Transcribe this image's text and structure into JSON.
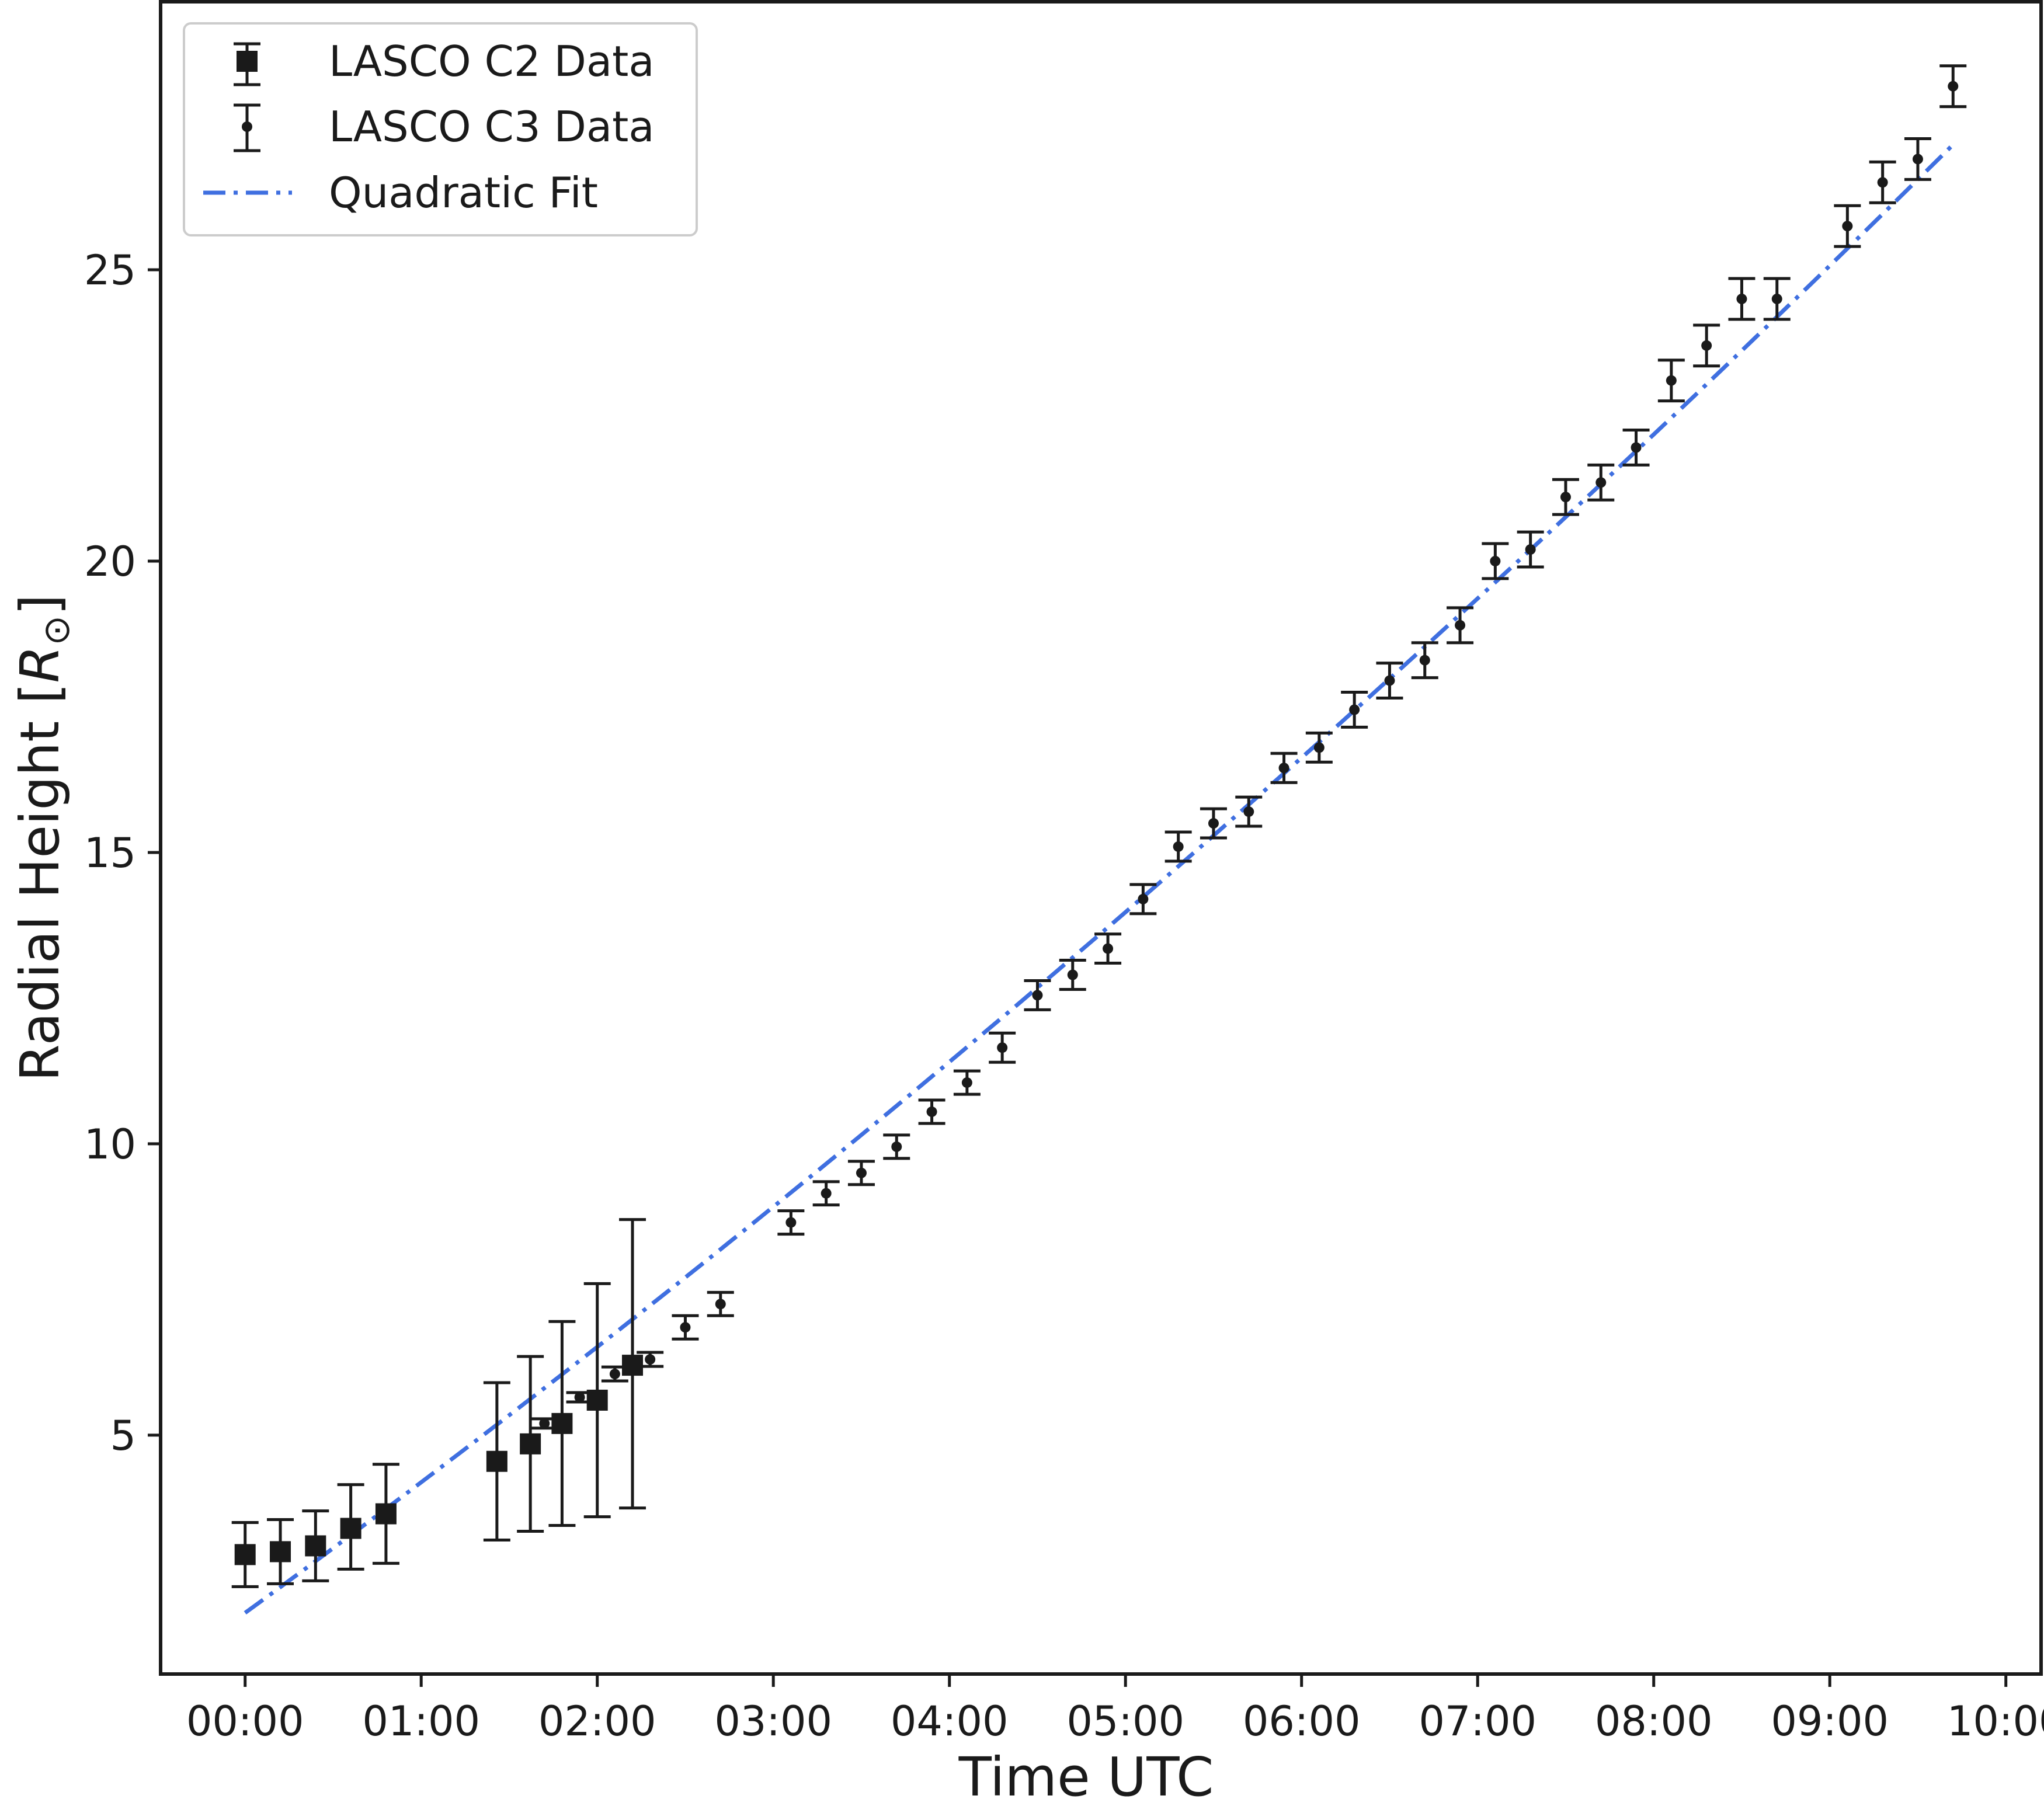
{
  "chart_data": {
    "type": "scatter",
    "title": "",
    "xlabel": "Time UTC",
    "ylabel": "Radial Height",
    "ylabel_unit": "R",
    "ylabel_unit_sub": "⊙",
    "xlim": [
      -0.48,
      10.2
    ],
    "ylim": [
      0.9,
      29.6
    ],
    "x_ticks": [
      0,
      1,
      2,
      3,
      4,
      5,
      6,
      7,
      8,
      9,
      10
    ],
    "x_tick_labels": [
      "00:00",
      "01:00",
      "02:00",
      "03:00",
      "04:00",
      "05:00",
      "06:00",
      "07:00",
      "08:00",
      "09:00",
      "10:00"
    ],
    "y_ticks": [
      5,
      10,
      15,
      20,
      25
    ],
    "y_tick_labels": [
      "5",
      "10",
      "15",
      "20",
      "25"
    ],
    "grid": false,
    "legend_position": "top-left",
    "colors": {
      "data": "#1a1a1a",
      "fit": "#3f6fe0"
    },
    "series": [
      {
        "name": "LASCO C2 Data",
        "marker": "square",
        "x": [
          0.0,
          0.2,
          0.4,
          0.6,
          0.8,
          1.43,
          1.62,
          1.8,
          2.0,
          2.2
        ],
        "y": [
          2.95,
          3.0,
          3.1,
          3.4,
          3.65,
          4.55,
          4.85,
          5.2,
          5.6,
          6.2
        ],
        "err_low": [
          0.55,
          0.55,
          0.6,
          0.7,
          0.85,
          1.35,
          1.5,
          1.75,
          2.0,
          2.45
        ],
        "err_high": [
          0.55,
          0.55,
          0.6,
          0.75,
          0.85,
          1.35,
          1.5,
          1.75,
          2.0,
          2.5
        ]
      },
      {
        "name": "LASCO C3 Data",
        "marker": "dot",
        "x": [
          1.7,
          1.9,
          2.1,
          2.3,
          2.5,
          2.7,
          3.1,
          3.3,
          3.5,
          3.7,
          3.9,
          4.1,
          4.3,
          4.5,
          4.7,
          4.9,
          5.1,
          5.3,
          5.5,
          5.7,
          5.9,
          6.1,
          6.3,
          6.5,
          6.7,
          6.9,
          7.1,
          7.3,
          7.5,
          7.7,
          7.9,
          8.1,
          8.3,
          8.5,
          8.7,
          9.1,
          9.3,
          9.5,
          9.7
        ],
        "y": [
          5.2,
          5.65,
          6.05,
          6.3,
          6.85,
          7.25,
          8.65,
          9.15,
          9.5,
          9.95,
          10.55,
          11.05,
          11.65,
          12.55,
          12.9,
          13.35,
          14.2,
          15.1,
          15.5,
          15.7,
          16.45,
          16.8,
          17.45,
          17.95,
          18.3,
          18.9,
          20.0,
          20.2,
          21.1,
          21.35,
          21.95,
          23.1,
          23.7,
          24.5,
          24.5,
          25.75,
          26.5,
          26.9,
          28.15
        ],
        "err": [
          0.08,
          0.08,
          0.12,
          0.12,
          0.2,
          0.2,
          0.2,
          0.2,
          0.2,
          0.2,
          0.2,
          0.2,
          0.25,
          0.25,
          0.25,
          0.25,
          0.25,
          0.25,
          0.25,
          0.25,
          0.25,
          0.25,
          0.3,
          0.3,
          0.3,
          0.3,
          0.3,
          0.3,
          0.3,
          0.3,
          0.3,
          0.35,
          0.35,
          0.35,
          0.35,
          0.35,
          0.35,
          0.35,
          0.35
        ]
      },
      {
        "name": "Quadratic Fit",
        "line_style": "dash-dot",
        "coefficients": {
          "a": 0.041,
          "b": 2.2,
          "c": 1.95
        },
        "x_range": [
          0,
          9.7
        ]
      }
    ]
  }
}
